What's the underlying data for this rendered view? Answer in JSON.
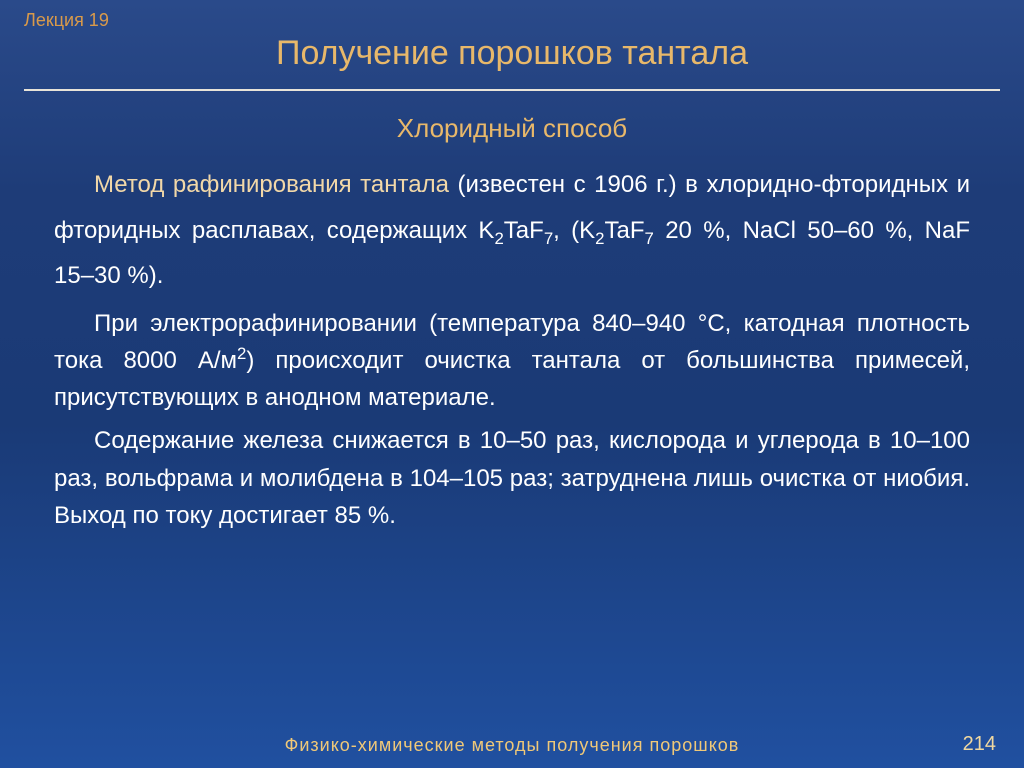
{
  "colors": {
    "lecture_label": "#d99a4a",
    "title": "#e8b86a",
    "subtitle": "#e8b86a",
    "highlight": "#f2d8a8",
    "body_text": "#ffffff",
    "footer": "#f0c878",
    "page_num": "#f0d8a0",
    "rule": "#e8e4d8",
    "bg_top": "#2a4a8a",
    "bg_bottom": "#2050a0"
  },
  "typography": {
    "title_fontsize": 34,
    "subtitle_fontsize": 26,
    "body_fontsize": 24,
    "footer_fontsize": 18,
    "lecture_fontsize": 18,
    "page_num_fontsize": 20,
    "line_height_loose": 1.9,
    "line_height_tight": 1.55,
    "font_family": "Arial"
  },
  "header": {
    "lecture_label": "Лекция 19",
    "title": "Получение порошков тантала"
  },
  "body": {
    "subtitle": "Хлоридный способ",
    "p1_highlight": "Метод рафинирования тантала",
    "p1_rest_a": " (известен с 1906 г.) в хлоридно-фторидных и фторидных расплавах, содержащих K",
    "p1_rest_b": "TaF",
    "p1_rest_c": ", (K",
    "p1_rest_d": "TaF",
    "p1_rest_e": " 20 %, NaCl 50–60 %, NaF 15–30 %).",
    "sub2": "2",
    "sub7": "7",
    "p2_a": "При электрорафинировании (температура 840–940 °С, катодная плотность тока 8000 А/м",
    "p2_sup": "2",
    "p2_b": ") происходит очистка тантала от большинства примесей, присутствующих в анодном материале.",
    "p3": "Содержание железа снижается в 10–50 раз, кислорода и углерода в 10–100 раз, вольфрама и молибдена в 104–105 раз; затруднена лишь очистка от ниобия. Выход по току достигает 85 %."
  },
  "footer": {
    "text": "Физико-химические  методы  получения  порошков",
    "page": "214"
  }
}
